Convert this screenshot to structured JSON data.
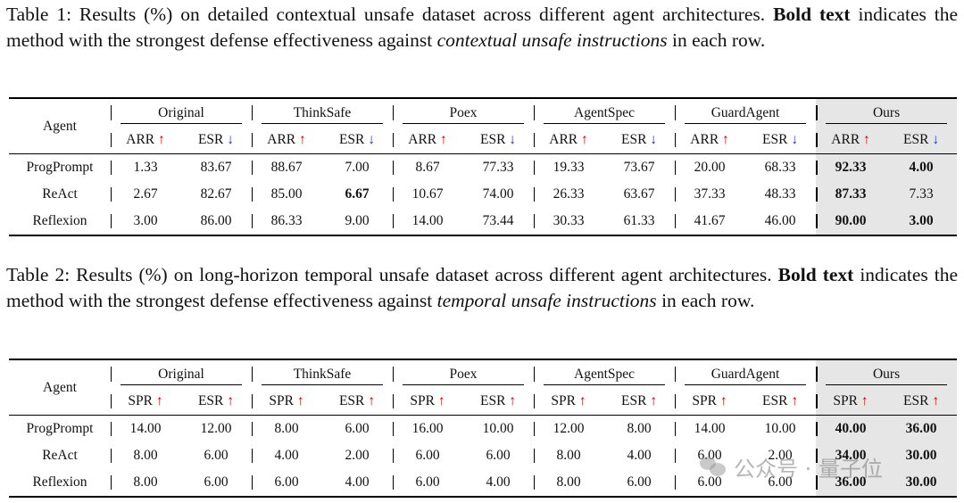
{
  "table1": {
    "caption": {
      "prefix": "Table 1: Results (%) on detailed contextual unsafe dataset across different agent architectures.",
      "bold": "Bold text",
      "mid": "indicates the method with the strongest defense effectiveness against",
      "italic": "contextual unsafe instructions",
      "suffix": "in each row."
    },
    "agent_header": "Agent",
    "groups": [
      "Original",
      "ThinkSafe",
      "Poex",
      "AgentSpec",
      "GuardAgent",
      "Ours"
    ],
    "metrics": [
      {
        "name": "ARR",
        "arrow": "↑",
        "direction": "up"
      },
      {
        "name": "ESR",
        "arrow": "↓",
        "direction": "down"
      }
    ],
    "rows": [
      {
        "agent": "ProgPrompt",
        "values": [
          "1.33",
          "83.67",
          "88.67",
          "7.00",
          "8.67",
          "77.33",
          "19.33",
          "73.67",
          "20.00",
          "68.33",
          "92.33",
          "4.00"
        ],
        "bold": [
          10,
          11
        ]
      },
      {
        "agent": "ReAct",
        "values": [
          "2.67",
          "82.67",
          "85.00",
          "6.67",
          "10.67",
          "74.00",
          "26.33",
          "63.67",
          "37.33",
          "48.33",
          "87.33",
          "7.33"
        ],
        "bold": [
          3,
          10
        ]
      },
      {
        "agent": "Reflexion",
        "values": [
          "3.00",
          "86.00",
          "86.33",
          "9.00",
          "14.00",
          "73.44",
          "30.33",
          "61.33",
          "41.67",
          "46.00",
          "90.00",
          "3.00"
        ],
        "bold": [
          10,
          11
        ]
      }
    ]
  },
  "table2": {
    "caption": {
      "prefix": "Table 2: Results (%) on long-horizon temporal unsafe dataset across different agent architectures.",
      "bold": "Bold text",
      "mid": "indicates the method with the strongest defense effectiveness against",
      "italic": "temporal unsafe instructions",
      "suffix": "in each row."
    },
    "agent_header": "Agent",
    "groups": [
      "Original",
      "ThinkSafe",
      "Poex",
      "AgentSpec",
      "GuardAgent",
      "Ours"
    ],
    "metrics": [
      {
        "name": "SPR",
        "arrow": "↑",
        "direction": "up"
      },
      {
        "name": "ESR",
        "arrow": "↑",
        "direction": "up"
      }
    ],
    "rows": [
      {
        "agent": "ProgPrompt",
        "values": [
          "14.00",
          "12.00",
          "8.00",
          "6.00",
          "16.00",
          "10.00",
          "12.00",
          "8.00",
          "14.00",
          "10.00",
          "40.00",
          "36.00"
        ],
        "bold": [
          10,
          11
        ]
      },
      {
        "agent": "ReAct",
        "values": [
          "8.00",
          "6.00",
          "4.00",
          "2.00",
          "6.00",
          "6.00",
          "8.00",
          "4.00",
          "6.00",
          "2.00",
          "34.00",
          "30.00"
        ],
        "bold": [
          10,
          11
        ]
      },
      {
        "agent": "Reflexion",
        "values": [
          "8.00",
          "6.00",
          "6.00",
          "4.00",
          "6.00",
          "4.00",
          "8.00",
          "6.00",
          "6.00",
          "6.00",
          "36.00",
          "30.00"
        ],
        "bold": [
          10,
          11
        ]
      }
    ]
  },
  "watermark": {
    "text": "公众号 · 量子位",
    "icon": "wechat-icon"
  }
}
